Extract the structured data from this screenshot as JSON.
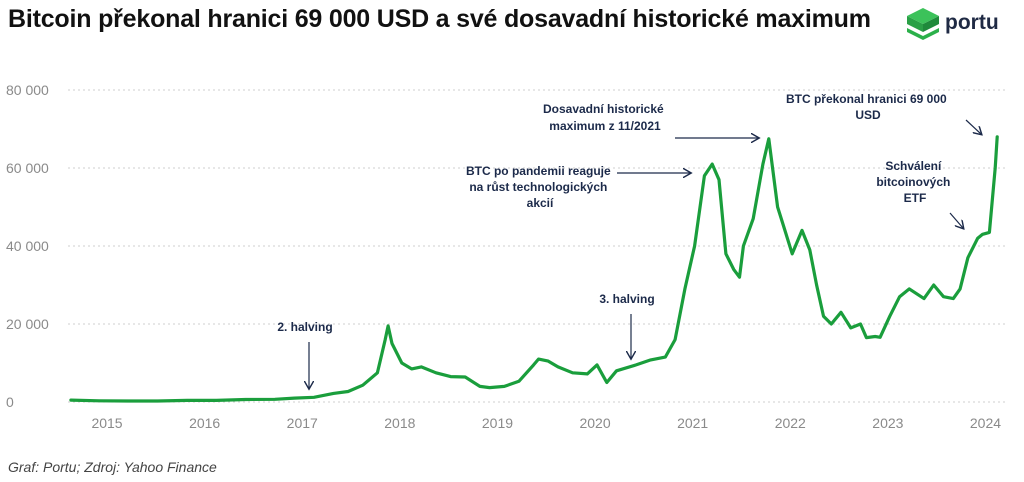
{
  "title": "Bitcoin překonal hranici 69 000 USD a své dosavadní historické maximum",
  "logo": {
    "text": "portu",
    "icon": "portu-cube-icon",
    "accent": "#2bb04a"
  },
  "source": "Graf: Portu; Zdroj: Yahoo Finance",
  "colors": {
    "line": "#1a9e3c",
    "annotation": "#1c2a4a",
    "grid": "#cfcfcf"
  },
  "chart_data": {
    "type": "line",
    "ylim": [
      0,
      80000
    ],
    "yticks": [
      0,
      20000,
      40000,
      60000,
      80000
    ],
    "ytick_labels": [
      "0",
      "20 000",
      "40 000",
      "60 000",
      "80 000"
    ],
    "xlim": [
      2014.68,
      2024.28
    ],
    "xticks": [
      2015,
      2016,
      2017,
      2018,
      2019,
      2020,
      2021,
      2022,
      2023,
      2024
    ],
    "xtick_labels": [
      "2015",
      "2016",
      "2017",
      "2018",
      "2019",
      "2020",
      "2021",
      "2022",
      "2023",
      "2024"
    ],
    "grid": "horizontal dotted",
    "series": [
      {
        "name": "",
        "x": [
          2014.71,
          2015.0,
          2015.3,
          2015.6,
          2015.9,
          2016.2,
          2016.5,
          2016.8,
          2017.0,
          2017.2,
          2017.4,
          2017.55,
          2017.7,
          2017.85,
          2017.93,
          2017.96,
          2018.0,
          2018.1,
          2018.2,
          2018.3,
          2018.45,
          2018.6,
          2018.75,
          2018.9,
          2019.0,
          2019.15,
          2019.3,
          2019.45,
          2019.5,
          2019.6,
          2019.7,
          2019.85,
          2020.0,
          2020.1,
          2020.2,
          2020.3,
          2020.5,
          2020.65,
          2020.8,
          2020.9,
          2021.0,
          2021.1,
          2021.2,
          2021.28,
          2021.35,
          2021.42,
          2021.5,
          2021.56,
          2021.6,
          2021.7,
          2021.8,
          2021.86,
          2021.95,
          2022.0,
          2022.1,
          2022.2,
          2022.28,
          2022.35,
          2022.42,
          2022.5,
          2022.6,
          2022.7,
          2022.8,
          2022.86,
          2022.95,
          2023.0,
          2023.1,
          2023.2,
          2023.3,
          2023.45,
          2023.55,
          2023.65,
          2023.75,
          2023.82,
          2023.9,
          2024.0,
          2024.05,
          2024.12,
          2024.18,
          2024.2
        ],
        "values": [
          500,
          300,
          250,
          250,
          400,
          420,
          650,
          700,
          1000,
          1200,
          2200,
          2700,
          4300,
          7500,
          16000,
          19500,
          15000,
          10000,
          8500,
          9000,
          7500,
          6500,
          6400,
          4000,
          3700,
          4000,
          5300,
          9500,
          11000,
          10500,
          9000,
          7500,
          7200,
          9500,
          5000,
          8000,
          9500,
          10800,
          11500,
          16000,
          29000,
          40000,
          58000,
          61000,
          57000,
          38000,
          34000,
          32000,
          40000,
          47000,
          61000,
          67500,
          50000,
          46000,
          38000,
          44000,
          39000,
          30000,
          22000,
          20000,
          23000,
          19000,
          20000,
          16500,
          16800,
          16600,
          22000,
          27000,
          29000,
          26500,
          30000,
          27000,
          26500,
          29000,
          37000,
          42000,
          43000,
          43500,
          60000,
          68000
        ]
      }
    ],
    "annotations": [
      {
        "text": "2. halving",
        "x": 2017.12,
        "y": 1200
      },
      {
        "text": "3. halving",
        "x": 2020.43,
        "y": 9600
      },
      {
        "text": "BTC po pandemii reaguje na růst technologických akcií",
        "x": 2021.1,
        "y": 58000
      },
      {
        "text": "Dosavadní historické maximum z 11/2021",
        "x": 2021.86,
        "y": 67500
      },
      {
        "text": "BTC překonal hranici 69 000 USD",
        "x": 2024.2,
        "y": 68000
      },
      {
        "text": "Schválení bitcoinových ETF",
        "x": 2023.9,
        "y": 44000
      }
    ]
  }
}
